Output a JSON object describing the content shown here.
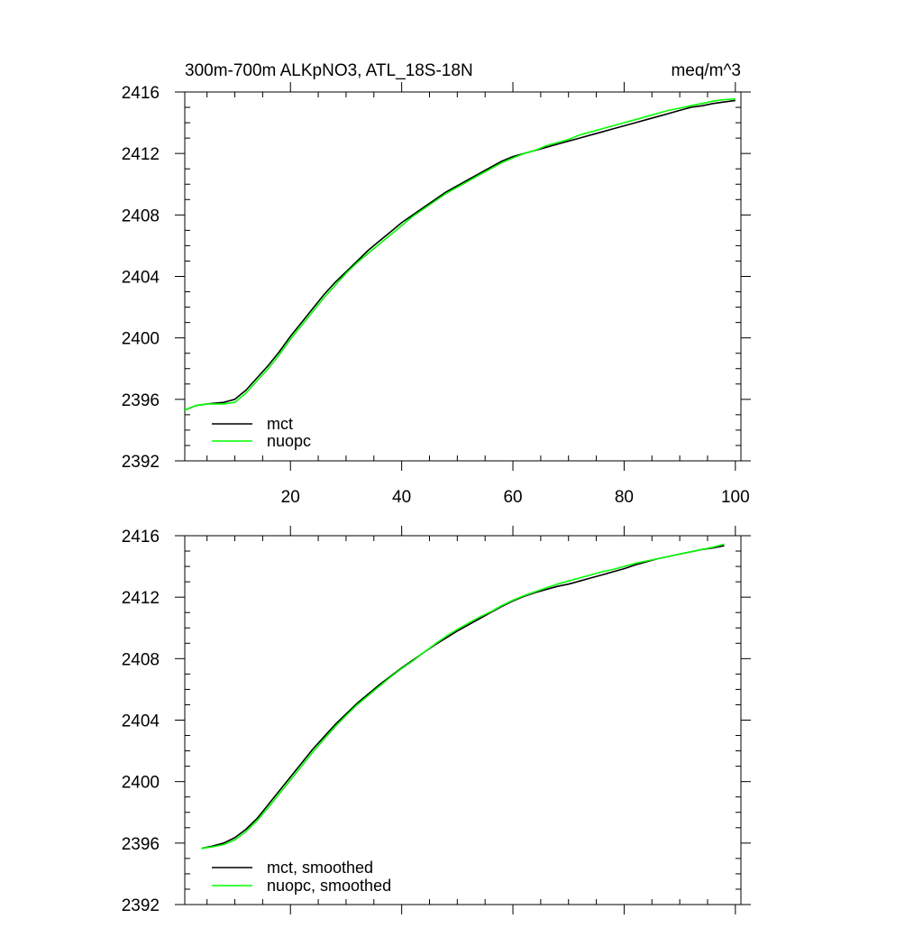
{
  "chart_data": [
    {
      "type": "line",
      "title": "300m-700m ALKpNO3, ATL_18S-18N",
      "units": "meq/m^3",
      "xlim": [
        1,
        101
      ],
      "ylim": [
        2392,
        2416
      ],
      "x_ticks": [
        20,
        40,
        60,
        80,
        100
      ],
      "x_tick_labels": [
        "20",
        "40",
        "60",
        "80",
        "100"
      ],
      "y_ticks": [
        2392,
        2396,
        2400,
        2404,
        2408,
        2412,
        2416
      ],
      "y_tick_labels": [
        "2392",
        "2396",
        "2400",
        "2404",
        "2408",
        "2412",
        "2416"
      ],
      "legend_position": "bottom-left",
      "x": [
        1,
        3,
        5,
        8,
        10,
        12,
        14,
        16,
        18,
        20,
        22,
        24,
        26,
        28,
        30,
        32,
        34,
        36,
        38,
        40,
        42,
        44,
        46,
        48,
        50,
        52,
        54,
        56,
        58,
        60,
        62,
        64,
        66,
        68,
        70,
        72,
        74,
        76,
        78,
        80,
        82,
        84,
        86,
        88,
        90,
        92,
        94,
        96,
        98,
        100
      ],
      "series": [
        {
          "name": "mct",
          "color": "#000000",
          "values": [
            2395.3,
            2395.6,
            2395.7,
            2395.8,
            2396.0,
            2396.6,
            2397.4,
            2398.2,
            2399.1,
            2400.1,
            2401.0,
            2401.9,
            2402.8,
            2403.6,
            2404.3,
            2405.0,
            2405.7,
            2406.3,
            2406.9,
            2407.5,
            2408.0,
            2408.5,
            2409.0,
            2409.5,
            2409.9,
            2410.3,
            2410.7,
            2411.1,
            2411.5,
            2411.8,
            2412.0,
            2412.2,
            2412.4,
            2412.6,
            2412.8,
            2413.0,
            2413.2,
            2413.4,
            2413.6,
            2413.8,
            2414.0,
            2414.2,
            2414.4,
            2414.6,
            2414.8,
            2415.0,
            2415.1,
            2415.25,
            2415.35,
            2415.45
          ]
        },
        {
          "name": "nuopc",
          "color": "#00ff00",
          "values": [
            2395.3,
            2395.6,
            2395.7,
            2395.7,
            2395.8,
            2396.4,
            2397.2,
            2398.0,
            2398.9,
            2399.9,
            2400.8,
            2401.7,
            2402.6,
            2403.4,
            2404.2,
            2404.9,
            2405.5,
            2406.1,
            2406.7,
            2407.3,
            2407.9,
            2408.4,
            2408.9,
            2409.4,
            2409.8,
            2410.2,
            2410.6,
            2411.0,
            2411.4,
            2411.7,
            2412.0,
            2412.2,
            2412.5,
            2412.7,
            2412.9,
            2413.2,
            2413.4,
            2413.6,
            2413.8,
            2414.0,
            2414.2,
            2414.4,
            2414.6,
            2414.8,
            2414.95,
            2415.1,
            2415.25,
            2415.4,
            2415.5,
            2415.55
          ]
        }
      ]
    },
    {
      "type": "line",
      "title": "",
      "xlim": [
        1,
        101
      ],
      "ylim": [
        2392,
        2416
      ],
      "x_ticks": [
        20,
        40,
        60,
        80,
        100
      ],
      "x_tick_labels": [],
      "y_ticks": [
        2392,
        2396,
        2400,
        2404,
        2408,
        2412,
        2416
      ],
      "y_tick_labels": [
        "2392",
        "2396",
        "2400",
        "2404",
        "2408",
        "2412",
        "2416"
      ],
      "legend_position": "bottom-left",
      "x": [
        4,
        6,
        8,
        10,
        12,
        14,
        16,
        18,
        20,
        22,
        24,
        26,
        28,
        30,
        32,
        34,
        36,
        38,
        40,
        42,
        44,
        46,
        48,
        50,
        52,
        54,
        56,
        58,
        60,
        62,
        64,
        66,
        68,
        70,
        72,
        74,
        76,
        78,
        80,
        82,
        84,
        86,
        88,
        90,
        92,
        94,
        96,
        98
      ],
      "series": [
        {
          "name": "mct, smoothed",
          "color": "#000000",
          "values": [
            2395.65,
            2395.8,
            2396.0,
            2396.35,
            2396.9,
            2397.6,
            2398.5,
            2399.4,
            2400.3,
            2401.2,
            2402.1,
            2402.9,
            2403.7,
            2404.4,
            2405.1,
            2405.7,
            2406.3,
            2406.85,
            2407.4,
            2407.9,
            2408.4,
            2408.9,
            2409.35,
            2409.8,
            2410.2,
            2410.6,
            2411.0,
            2411.4,
            2411.75,
            2412.05,
            2412.3,
            2412.5,
            2412.7,
            2412.85,
            2413.05,
            2413.25,
            2413.45,
            2413.65,
            2413.85,
            2414.1,
            2414.3,
            2414.5,
            2414.65,
            2414.8,
            2414.95,
            2415.1,
            2415.2,
            2415.35
          ]
        },
        {
          "name": "nuopc, smoothed",
          "color": "#00ff00",
          "values": [
            2395.65,
            2395.75,
            2395.9,
            2396.2,
            2396.75,
            2397.45,
            2398.3,
            2399.2,
            2400.1,
            2401.0,
            2401.9,
            2402.75,
            2403.55,
            2404.3,
            2405.0,
            2405.6,
            2406.2,
            2406.8,
            2407.35,
            2407.85,
            2408.4,
            2408.95,
            2409.45,
            2409.9,
            2410.3,
            2410.7,
            2411.05,
            2411.45,
            2411.8,
            2412.1,
            2412.35,
            2412.6,
            2412.85,
            2413.05,
            2413.25,
            2413.45,
            2413.65,
            2413.8,
            2414.0,
            2414.2,
            2414.35,
            2414.5,
            2414.65,
            2414.8,
            2414.95,
            2415.1,
            2415.25,
            2415.45
          ]
        }
      ]
    }
  ]
}
